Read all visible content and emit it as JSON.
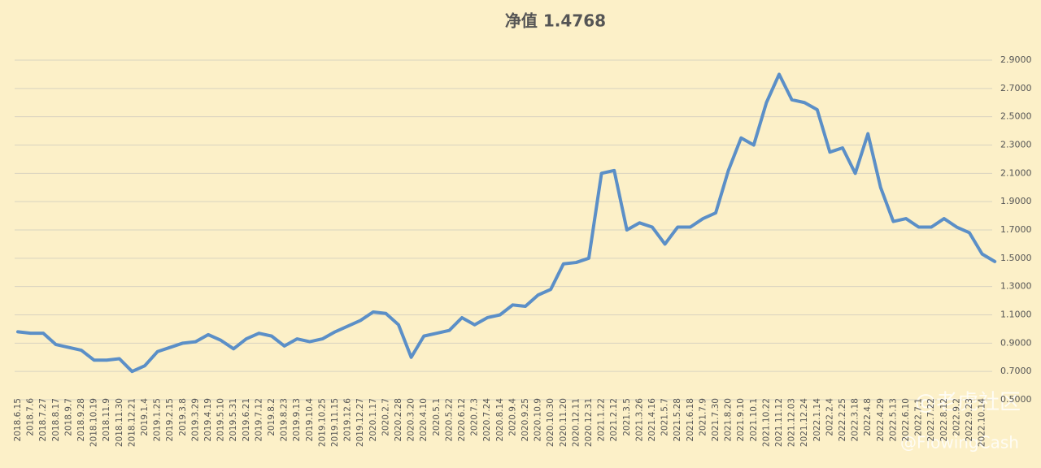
{
  "chart_data": {
    "type": "line",
    "title": "净值 1.4768",
    "categories": [
      "2018.6.15",
      "2018.7.6",
      "2018.7.27",
      "2018.8.17",
      "2018.9.7",
      "2018.9.28",
      "2018.10.19",
      "2018.11.9",
      "2018.11.30",
      "2018.12.21",
      "2019.1.4",
      "2019.1.25",
      "2019.2.15",
      "2019.3.8",
      "2019.3.29",
      "2019.4.19",
      "2019.5.10",
      "2019.5.31",
      "2019.6.21",
      "2019.7.12",
      "2019.8.2",
      "2019.8.23",
      "2019.9.13",
      "2019.10.4",
      "2019.10.25",
      "2019.11.15",
      "2019.12.6",
      "2019.12.27",
      "2020.1.17",
      "2020.2.7",
      "2020.2.28",
      "2020.3.20",
      "2020.4.10",
      "2020.5.1",
      "2020.5.22",
      "2020.6.12",
      "2020.7.3",
      "2020.7.24",
      "2020.8.14",
      "2020.9.4",
      "2020.9.25",
      "2020.10.9",
      "2020.10.30",
      "2020.11.20",
      "2020.12.11",
      "2020.12.31",
      "2021.1.22",
      "2021.2.12",
      "2021.3.5",
      "2021.3.26",
      "2021.4.16",
      "2021.5.7",
      "2021.5.28",
      "2021.6.18",
      "2021.7.9",
      "2021.7.30",
      "2021.8.20",
      "2021.9.10",
      "2021.10.1",
      "2021.10.22",
      "2021.11.12",
      "2021.12.03",
      "2021.12.24",
      "2022.1.14",
      "2022.2.4",
      "2022.2.25",
      "2022.3.18",
      "2022.4.8",
      "2022.4.29",
      "2022.5.13",
      "2022.6.10",
      "2022.7.1",
      "2022.7.22",
      "2022.8.12",
      "2022.9.2",
      "2022.9.23",
      "2022.10.14",
      null
    ],
    "series": [
      {
        "name": "净值",
        "color": "#5b8fc7",
        "values": [
          0.98,
          0.97,
          0.97,
          0.89,
          0.87,
          0.85,
          0.78,
          0.78,
          0.79,
          0.7,
          0.74,
          0.84,
          0.87,
          0.9,
          0.91,
          0.96,
          0.92,
          0.86,
          0.93,
          0.97,
          0.95,
          0.88,
          0.93,
          0.91,
          0.93,
          0.98,
          1.02,
          1.06,
          1.12,
          1.11,
          1.03,
          0.8,
          0.95,
          0.97,
          0.99,
          1.08,
          1.03,
          1.08,
          1.1,
          1.17,
          1.16,
          1.24,
          1.28,
          1.46,
          1.47,
          1.5,
          2.1,
          2.12,
          1.7,
          1.75,
          1.72,
          1.6,
          1.72,
          1.72,
          1.78,
          1.82,
          2.12,
          2.35,
          2.3,
          2.6,
          2.8,
          2.62,
          2.6,
          2.55,
          2.25,
          2.28,
          2.1,
          2.38,
          2.0,
          1.76,
          1.78,
          1.72,
          1.72,
          1.78,
          1.72,
          1.68,
          1.53,
          1.4768
        ]
      }
    ],
    "ylim": [
      0.5,
      2.9
    ],
    "yticks": [
      {
        "value": 0.5,
        "label": "0.5000"
      },
      {
        "value": 0.7,
        "label": "0.7000"
      },
      {
        "value": 0.9,
        "label": "0.9000"
      },
      {
        "value": 1.1,
        "label": "1.1000"
      },
      {
        "value": 1.3,
        "label": "1.3000"
      },
      {
        "value": 1.5,
        "label": "1.5000"
      },
      {
        "value": 1.7,
        "label": "1.7000"
      },
      {
        "value": 1.9,
        "label": "1.9000"
      },
      {
        "value": 2.1,
        "label": "2.1000"
      },
      {
        "value": 2.3,
        "label": "2.3000"
      },
      {
        "value": 2.5,
        "label": "2.5000"
      },
      {
        "value": 2.7,
        "label": "2.7000"
      },
      {
        "value": 2.9,
        "label": "2.9000"
      }
    ],
    "grid": true,
    "watermark": [
      "@老虎社区",
      "@FlowingCash"
    ]
  }
}
